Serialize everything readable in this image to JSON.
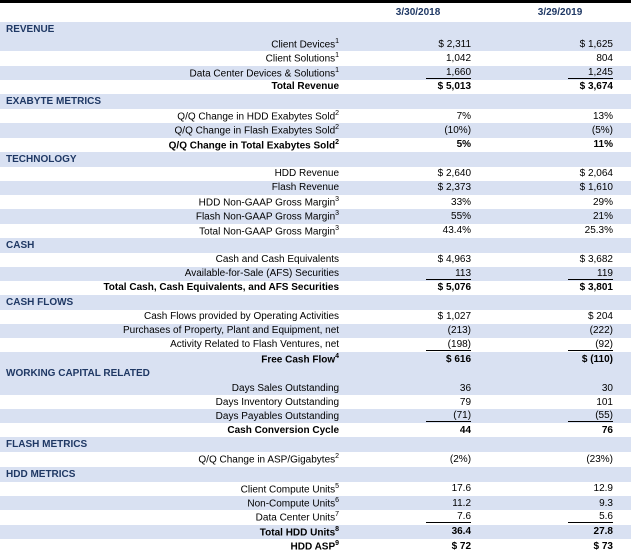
{
  "headers": {
    "col1": "3/30/2018",
    "col2": "3/29/2019"
  },
  "colors": {
    "band_bg": "#d9e1f2",
    "header_text": "#1f3864",
    "topbar": "#000000"
  },
  "sections": [
    {
      "title": "REVENUE",
      "rows": [
        {
          "label": "Client Devices",
          "sup": "1",
          "c1": "$ 2,311",
          "c2": "$ 1,625",
          "alt": true
        },
        {
          "label": "Client Solutions",
          "sup": "1",
          "c1": "1,042",
          "c2": "804"
        },
        {
          "label": "Data Center Devices & Solutions",
          "sup": "1",
          "c1": "1,660",
          "c2": "1,245",
          "alt": true,
          "underline": true
        },
        {
          "label": "Total Revenue",
          "c1": "$ 5,013",
          "c2": "$ 3,674",
          "bold": true
        }
      ]
    },
    {
      "title": "EXABYTE METRICS",
      "rows": [
        {
          "label": "Q/Q Change in HDD Exabytes Sold",
          "sup": "2",
          "c1": "7%",
          "c2": "13%"
        },
        {
          "label": "Q/Q Change in Flash Exabytes Sold",
          "sup": "2",
          "c1": "(10%)",
          "c2": "(5%)",
          "alt": true
        },
        {
          "label": "Q/Q Change in Total Exabytes Sold",
          "sup": "2",
          "c1": "5%",
          "c2": "11%",
          "bold": true
        }
      ]
    },
    {
      "title": "TECHNOLOGY",
      "rows": [
        {
          "label": "HDD Revenue",
          "c1": "$ 2,640",
          "c2": "$ 2,064"
        },
        {
          "label": "Flash Revenue",
          "c1": "$ 2,373",
          "c2": "$ 1,610",
          "alt": true
        },
        {
          "label": "HDD Non-GAAP Gross Margin",
          "sup": "3",
          "c1": "33%",
          "c2": "29%"
        },
        {
          "label": "Flash Non-GAAP Gross Margin",
          "sup": "3",
          "c1": "55%",
          "c2": "21%",
          "alt": true
        },
        {
          "label": "Total Non-GAAP Gross Margin",
          "sup": "3",
          "c1": "43.4%",
          "c2": "25.3%"
        }
      ]
    },
    {
      "title": "CASH",
      "rows": [
        {
          "label": "Cash and Cash Equivalents",
          "c1": "$ 4,963",
          "c2": "$ 3,682"
        },
        {
          "label": "Available-for-Sale (AFS) Securities",
          "c1": "113",
          "c2": "119",
          "alt": true,
          "underline": true
        },
        {
          "label": "Total Cash, Cash Equivalents, and AFS Securities",
          "c1": "$ 5,076",
          "c2": "$ 3,801",
          "bold": true
        }
      ]
    },
    {
      "title": "CASH FLOWS",
      "rows": [
        {
          "label": "Cash Flows provided by Operating Activities",
          "c1": "$ 1,027",
          "c2": "$ 204"
        },
        {
          "label": "Purchases of Property, Plant and Equipment, net",
          "c1": "(213)",
          "c2": "(222)",
          "alt": true
        },
        {
          "label": "Activity Related to Flash Ventures, net",
          "c1": "(198)",
          "c2": "(92)",
          "underline": true
        },
        {
          "label": "Free Cash Flow",
          "sup": "4",
          "c1": "$ 616",
          "c2": "$ (110)",
          "alt": true,
          "bold": true
        }
      ]
    },
    {
      "title": "WORKING CAPITAL RELATED",
      "rows": [
        {
          "label": "Days Sales Outstanding",
          "c1": "36",
          "c2": "30",
          "alt": true
        },
        {
          "label": "Days Inventory Outstanding",
          "c1": "79",
          "c2": "101"
        },
        {
          "label": "Days Payables Outstanding",
          "c1": "(71)",
          "c2": "(55)",
          "alt": true,
          "underline": true
        },
        {
          "label": "Cash Conversion Cycle",
          "c1": "44",
          "c2": "76",
          "bold": true
        }
      ]
    },
    {
      "title": "FLASH METRICS",
      "rows": [
        {
          "label": "Q/Q Change in ASP/Gigabytes",
          "sup": "2",
          "c1": "(2%)",
          "c2": "(23%)"
        }
      ]
    },
    {
      "title": "HDD METRICS",
      "rows": [
        {
          "label": "Client Compute Units",
          "sup": "5",
          "c1": "17.6",
          "c2": "12.9"
        },
        {
          "label": "Non-Compute Units",
          "sup": "6",
          "c1": "11.2",
          "c2": "9.3",
          "alt": true
        },
        {
          "label": "Data Center Units",
          "sup": "7",
          "c1": "7.6",
          "c2": "5.6",
          "underline": true
        },
        {
          "label": "Total HDD Units",
          "sup": "8",
          "c1": "36.4",
          "c2": "27.8",
          "alt": true,
          "bold": true
        },
        {
          "label": "HDD ASP",
          "sup": "9",
          "c1": "$ 72",
          "c2": "$ 73",
          "bold": true
        }
      ]
    }
  ]
}
